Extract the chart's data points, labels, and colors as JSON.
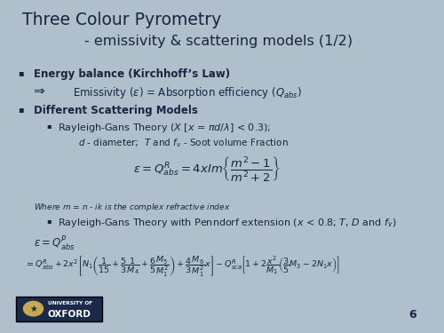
{
  "bg_color": "#b0bfcc",
  "title_line1": "Three Colour Pyrometry",
  "title_line2": "- emissivity & scattering models (1/2)",
  "text_color": "#1a2340",
  "title_fontsize": 13.5,
  "subtitle_fontsize": 11.5,
  "body_fontsize": 8.5,
  "small_fontsize": 6.5,
  "eq1_fontsize": 9.5,
  "eq2_fontsize": 6.8,
  "footer_number": "6",
  "oxford_box_color": "#1a2a4a"
}
